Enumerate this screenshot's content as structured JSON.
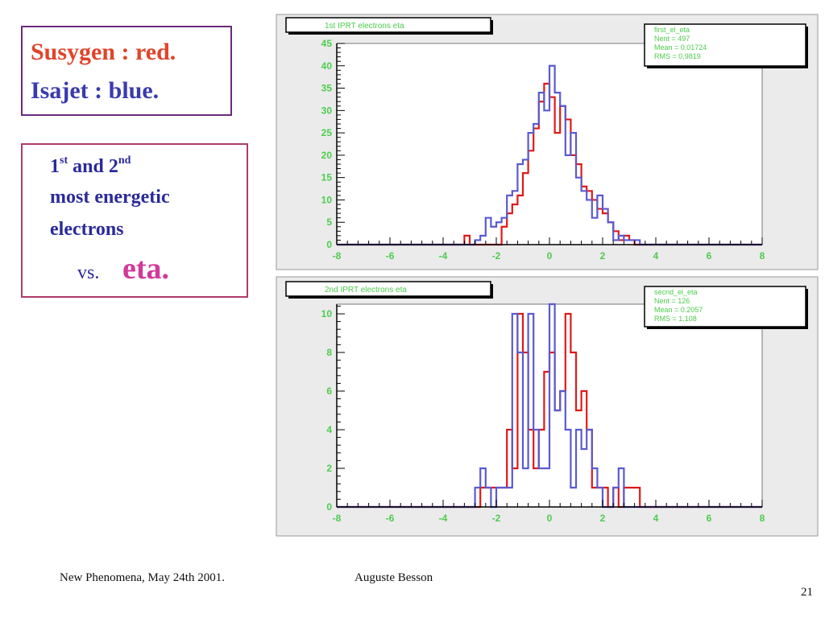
{
  "legend_box": {
    "line1": "Susygen : red.",
    "line2": "Isajet : blue."
  },
  "desc_box": {
    "line1_a": "1",
    "line1_sup1": "st",
    "line1_b": " and 2",
    "line1_sup2": "nd",
    "line2": "most energetic",
    "line3": "electrons",
    "vs": "vs.",
    "eta": "eta."
  },
  "footer": {
    "left": "New Phenomena, May 24th 2001.",
    "center": "Auguste Besson",
    "page": "21"
  },
  "colors": {
    "susygen": "#e01818",
    "isajet": "#5a5ad0",
    "axis_text": "#4ccc4c",
    "frame_bg": "#ebebeb"
  },
  "chart_data": [
    {
      "type": "histogram",
      "title": "1st IPRT electrons eta",
      "stats": {
        "name": "first_el_eta",
        "nent": "Nent = 497",
        "mean": "Mean = 0.01724",
        "rms": "RMS = 0.9819"
      },
      "xlim": [
        -8,
        8
      ],
      "ylim": [
        0,
        45
      ],
      "xticks": [
        -8,
        -6,
        -4,
        -2,
        0,
        2,
        4,
        6,
        8
      ],
      "yticks": [
        0,
        5,
        10,
        15,
        20,
        25,
        30,
        35,
        40,
        45
      ],
      "bin_width": 0.2,
      "series": [
        {
          "color": "#e01818",
          "points": [
            [
              -3.2,
              2
            ],
            [
              -1.8,
              4
            ],
            [
              -1.6,
              7
            ],
            [
              -1.4,
              9
            ],
            [
              -1.2,
              11
            ],
            [
              -1.0,
              16
            ],
            [
              -0.8,
              21
            ],
            [
              -0.6,
              26
            ],
            [
              -0.4,
              32
            ],
            [
              -0.2,
              36
            ],
            [
              0.0,
              33
            ],
            [
              0.2,
              25
            ],
            [
              0.4,
              31
            ],
            [
              0.6,
              28
            ],
            [
              0.8,
              20
            ],
            [
              1.0,
              18
            ],
            [
              1.2,
              13
            ],
            [
              1.4,
              12
            ],
            [
              1.6,
              10
            ],
            [
              1.8,
              8
            ],
            [
              2.0,
              7
            ],
            [
              2.2,
              5
            ],
            [
              2.4,
              3
            ],
            [
              2.6,
              1
            ],
            [
              2.8,
              2
            ],
            [
              3.0,
              1
            ]
          ]
        },
        {
          "color": "#5a5ad0",
          "points": [
            [
              -2.8,
              1
            ],
            [
              -2.6,
              2
            ],
            [
              -2.4,
              6
            ],
            [
              -2.2,
              4
            ],
            [
              -2.0,
              5
            ],
            [
              -1.8,
              6
            ],
            [
              -1.6,
              11
            ],
            [
              -1.4,
              12
            ],
            [
              -1.2,
              18
            ],
            [
              -1.0,
              19
            ],
            [
              -0.8,
              25
            ],
            [
              -0.6,
              27
            ],
            [
              -0.4,
              34
            ],
            [
              -0.2,
              30
            ],
            [
              0.0,
              40
            ],
            [
              0.2,
              34
            ],
            [
              0.4,
              31
            ],
            [
              0.6,
              20
            ],
            [
              0.8,
              25
            ],
            [
              1.0,
              15
            ],
            [
              1.2,
              12
            ],
            [
              1.4,
              10
            ],
            [
              1.6,
              6
            ],
            [
              1.8,
              11
            ],
            [
              2.0,
              8
            ],
            [
              2.2,
              5
            ],
            [
              2.4,
              1
            ],
            [
              2.6,
              2
            ],
            [
              2.8,
              1
            ],
            [
              3.0,
              1
            ],
            [
              3.2,
              1
            ]
          ]
        }
      ]
    },
    {
      "type": "histogram",
      "title": "2nd IPRT electrons eta",
      "stats": {
        "name": "secnd_el_eta",
        "nent": "Nent = 126",
        "mean": "Mean = 0.2057",
        "rms": "RMS = 1.108"
      },
      "xlim": [
        -8,
        8
      ],
      "ylim": [
        0,
        10.5
      ],
      "xticks": [
        -8,
        -6,
        -4,
        -2,
        0,
        2,
        4,
        6,
        8
      ],
      "yticks": [
        0,
        2,
        4,
        6,
        8,
        10
      ],
      "bin_width": 0.2,
      "series": [
        {
          "color": "#e01818",
          "points": [
            [
              -2.6,
              1
            ],
            [
              -2.4,
              1
            ],
            [
              -2.2,
              1
            ],
            [
              -2.0,
              1
            ],
            [
              -1.8,
              1
            ],
            [
              -1.6,
              4
            ],
            [
              -1.4,
              2
            ],
            [
              -1.2,
              10
            ],
            [
              -1.0,
              8
            ],
            [
              -0.8,
              4
            ],
            [
              -0.6,
              2
            ],
            [
              -0.4,
              4
            ],
            [
              -0.2,
              7
            ],
            [
              0.0,
              8
            ],
            [
              0.2,
              5
            ],
            [
              0.4,
              6
            ],
            [
              0.6,
              10
            ],
            [
              0.8,
              8
            ],
            [
              1.0,
              5
            ],
            [
              1.2,
              6
            ],
            [
              1.4,
              4
            ],
            [
              1.6,
              1
            ],
            [
              1.8,
              1
            ],
            [
              2.0,
              1
            ],
            [
              2.2,
              0
            ],
            [
              2.4,
              1
            ],
            [
              2.6,
              0
            ],
            [
              2.8,
              1
            ],
            [
              3.0,
              1
            ],
            [
              3.2,
              1
            ]
          ]
        },
        {
          "color": "#5a5ad0",
          "points": [
            [
              -2.8,
              1
            ],
            [
              -2.6,
              2
            ],
            [
              -2.4,
              1
            ],
            [
              -2.2,
              0
            ],
            [
              -2.0,
              1
            ],
            [
              -1.8,
              1
            ],
            [
              -1.6,
              1
            ],
            [
              -1.4,
              10
            ],
            [
              -1.2,
              8
            ],
            [
              -1.0,
              2
            ],
            [
              -0.8,
              10
            ],
            [
              -0.6,
              4
            ],
            [
              -0.4,
              2
            ],
            [
              -0.2,
              2
            ],
            [
              0.0,
              10.5
            ],
            [
              0.2,
              5
            ],
            [
              0.4,
              6
            ],
            [
              0.6,
              4
            ],
            [
              0.8,
              1
            ],
            [
              1.0,
              4
            ],
            [
              1.2,
              3
            ],
            [
              1.4,
              4
            ],
            [
              1.6,
              2
            ],
            [
              1.8,
              1
            ],
            [
              2.0,
              0
            ],
            [
              2.2,
              0
            ],
            [
              2.4,
              1
            ],
            [
              2.6,
              2
            ],
            [
              2.8,
              0
            ],
            [
              3.0,
              0
            ]
          ]
        }
      ]
    }
  ]
}
